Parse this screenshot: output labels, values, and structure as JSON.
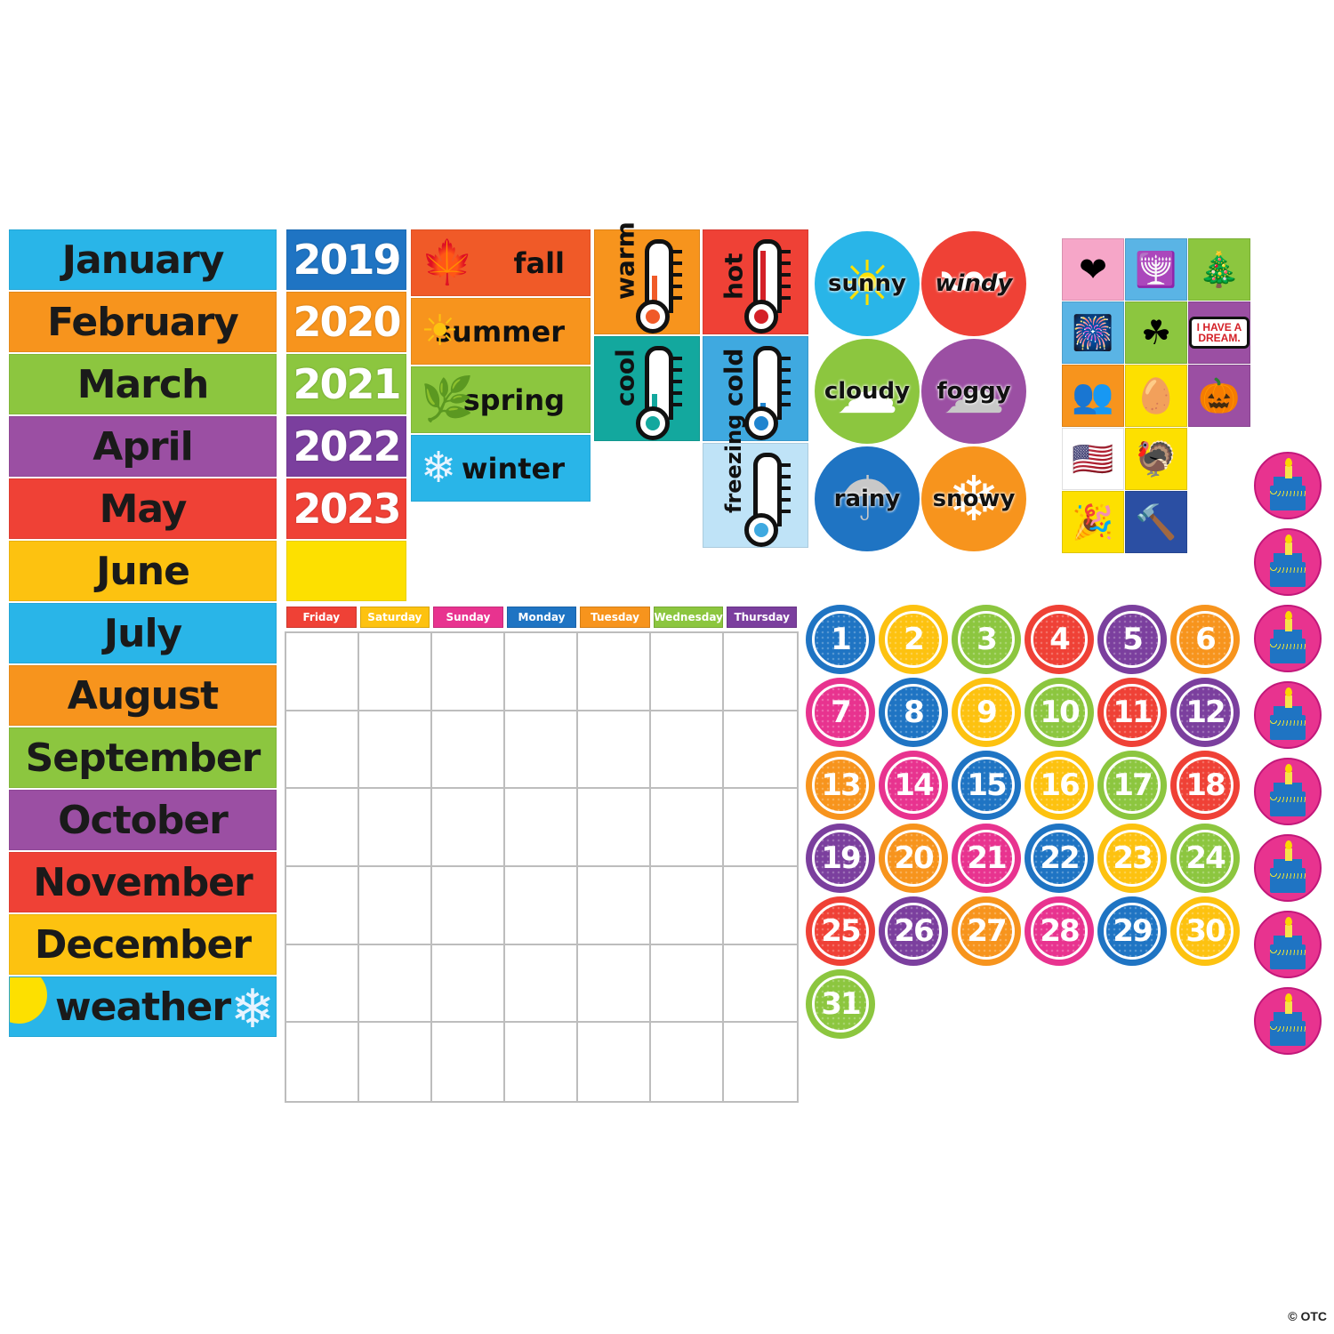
{
  "months": [
    {
      "label": "January",
      "color": "#29b5e8"
    },
    {
      "label": "February",
      "color": "#f7941d"
    },
    {
      "label": "March",
      "color": "#8cc63f"
    },
    {
      "label": "April",
      "color": "#9b4fa3"
    },
    {
      "label": "May",
      "color": "#ef4136"
    },
    {
      "label": "June",
      "color": "#fdc210"
    },
    {
      "label": "July",
      "color": "#29b5e8"
    },
    {
      "label": "August",
      "color": "#f7941d"
    },
    {
      "label": "September",
      "color": "#8cc63f"
    },
    {
      "label": "October",
      "color": "#9b4fa3"
    },
    {
      "label": "November",
      "color": "#ef4136"
    },
    {
      "label": "December",
      "color": "#fdc210"
    }
  ],
  "weather_header": {
    "label": "weather",
    "color": "#29b5e8",
    "sun_icon": "sun-icon",
    "snow_icon": "snowflake-icon"
  },
  "years": [
    {
      "label": "2019",
      "color": "#1f74c3"
    },
    {
      "label": "2020",
      "color": "#f7941d"
    },
    {
      "label": "2021",
      "color": "#8cc63f"
    },
    {
      "label": "2022",
      "color": "#7b3f9e"
    },
    {
      "label": "2023",
      "color": "#ef4136"
    },
    {
      "label": "",
      "color": "#fde000"
    }
  ],
  "seasons": [
    {
      "label": "fall",
      "color": "#f05a28",
      "icon": "leaf-icon",
      "glyph": "🍁"
    },
    {
      "label": "summer",
      "color": "#f7941d",
      "icon": "sun-icon",
      "glyph": "☀"
    },
    {
      "label": "spring",
      "color": "#8cc63f",
      "icon": "leaves-icon",
      "glyph": "🌿"
    },
    {
      "label": "winter",
      "color": "#29b5e8",
      "icon": "snowflake-icon",
      "glyph": "❄"
    }
  ],
  "temperatures": [
    {
      "label": "warm",
      "color": "#f7941d",
      "mercury": "#f05a28",
      "level": 0.55
    },
    {
      "label": "hot",
      "color": "#ef4136",
      "mercury": "#d42027",
      "level": 0.95
    },
    {
      "label": "cool",
      "color": "#13a89e",
      "mercury": "#13a89e",
      "level": 0.35
    },
    {
      "label": "cold",
      "color": "#3fa9e0",
      "mercury": "#1f84cf",
      "level": 0.2
    },
    {
      "label": "freezing",
      "color": "#bfe3f7",
      "mercury": "#3fa9e0",
      "level": 0.05
    }
  ],
  "weather_types": [
    {
      "label": "sunny",
      "color": "#29b5e8",
      "icon": "sun-icon",
      "glyph": "☀"
    },
    {
      "label": "windy",
      "color": "#ef4136",
      "icon": "wind-icon",
      "glyph": "〰"
    },
    {
      "label": "cloudy",
      "color": "#8cc63f",
      "icon": "cloud-icon",
      "glyph": "☁"
    },
    {
      "label": "foggy",
      "color": "#9b4fa3",
      "icon": "fog-icon",
      "glyph": "☁"
    },
    {
      "label": "rainy",
      "color": "#1f74c3",
      "icon": "rain-cloud-icon",
      "glyph": "☂"
    },
    {
      "label": "snowy",
      "color": "#f7941d",
      "icon": "snow-cloud-icon",
      "glyph": "❄"
    }
  ],
  "holidays": [
    {
      "name": "valentines-day",
      "color": "#f6a6c8",
      "icon": "hearts-icon",
      "glyph": "❤"
    },
    {
      "name": "hanukkah",
      "color": "#5ab4e5",
      "icon": "menorah-icon",
      "glyph": "🕎"
    },
    {
      "name": "christmas",
      "color": "#8cc63f",
      "icon": "christmas-tree-icon",
      "glyph": "🎄"
    },
    {
      "name": "independence-day",
      "color": "#5ab4e5",
      "icon": "flag-fireworks-icon",
      "glyph": "🎆"
    },
    {
      "name": "st-patricks-day",
      "color": "#8cc63f",
      "icon": "clover-icon",
      "glyph": "☘"
    },
    {
      "name": "mlk-day",
      "color": "#9b4fa3",
      "icon": "speech-bubble-icon",
      "text": "I HAVE A DREAM."
    },
    {
      "name": "presidents-day",
      "color": "#f7941d",
      "icon": "silhouettes-icon",
      "glyph": "👥"
    },
    {
      "name": "easter",
      "color": "#fde000",
      "icon": "easter-egg-icon",
      "glyph": "🥚"
    },
    {
      "name": "halloween",
      "color": "#9b4fa3",
      "icon": "jack-o-lantern-icon",
      "glyph": "🎃"
    },
    {
      "name": "veterans-day",
      "color": "#ffffff",
      "icon": "saluting-soldier-flag-icon",
      "glyph": "🇺🇸"
    },
    {
      "name": "thanksgiving",
      "color": "#fde000",
      "icon": "turkey-icon",
      "glyph": "🦃"
    },
    {
      "name": "new-years",
      "color": "#fde000",
      "icon": "party-hat-icon",
      "glyph": "🎉"
    },
    {
      "name": "labor-day",
      "color": "#2b4fa3",
      "icon": "hammer-icon",
      "glyph": "🔨"
    }
  ],
  "calendar": {
    "days": [
      {
        "label": "Friday",
        "color": "#ef4136"
      },
      {
        "label": "Saturday",
        "color": "#fdc210"
      },
      {
        "label": "Sunday",
        "color": "#e8338f"
      },
      {
        "label": "Monday",
        "color": "#1f74c3"
      },
      {
        "label": "Tuesday",
        "color": "#f7941d"
      },
      {
        "label": "Wednesday",
        "color": "#8cc63f"
      },
      {
        "label": "Thursday",
        "color": "#7b3f9e"
      }
    ],
    "rows": 6,
    "cols": 7
  },
  "numbers": [
    {
      "n": "1",
      "color": "#1f74c3"
    },
    {
      "n": "2",
      "color": "#fdc210"
    },
    {
      "n": "3",
      "color": "#8cc63f"
    },
    {
      "n": "4",
      "color": "#ef4136"
    },
    {
      "n": "5",
      "color": "#7b3f9e"
    },
    {
      "n": "6",
      "color": "#f7941d"
    },
    {
      "n": "7",
      "color": "#e8338f"
    },
    {
      "n": "8",
      "color": "#1f74c3"
    },
    {
      "n": "9",
      "color": "#fdc210"
    },
    {
      "n": "10",
      "color": "#8cc63f"
    },
    {
      "n": "11",
      "color": "#ef4136"
    },
    {
      "n": "12",
      "color": "#7b3f9e"
    },
    {
      "n": "13",
      "color": "#f7941d"
    },
    {
      "n": "14",
      "color": "#e8338f"
    },
    {
      "n": "15",
      "color": "#1f74c3"
    },
    {
      "n": "16",
      "color": "#fdc210"
    },
    {
      "n": "17",
      "color": "#8cc63f"
    },
    {
      "n": "18",
      "color": "#ef4136"
    },
    {
      "n": "19",
      "color": "#7b3f9e"
    },
    {
      "n": "20",
      "color": "#f7941d"
    },
    {
      "n": "21",
      "color": "#e8338f"
    },
    {
      "n": "22",
      "color": "#1f74c3"
    },
    {
      "n": "23",
      "color": "#fdc210"
    },
    {
      "n": "24",
      "color": "#8cc63f"
    },
    {
      "n": "25",
      "color": "#ef4136"
    },
    {
      "n": "26",
      "color": "#7b3f9e"
    },
    {
      "n": "27",
      "color": "#f7941d"
    },
    {
      "n": "28",
      "color": "#e8338f"
    },
    {
      "n": "29",
      "color": "#1f74c3"
    },
    {
      "n": "30",
      "color": "#fdc210"
    },
    {
      "n": "31",
      "color": "#8cc63f"
    }
  ],
  "birthdays": {
    "count": 8,
    "icon": "birthday-cake-icon",
    "color": "#e8338f"
  },
  "copyright": "© OTC"
}
